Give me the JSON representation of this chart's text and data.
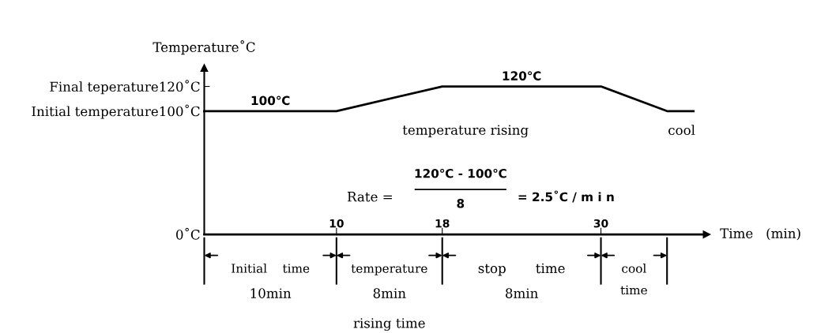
{
  "chart_data": {
    "type": "line",
    "ylabel": "Temperature˚C",
    "xlabel": "Time   (min)",
    "series": [
      {
        "color": "#000000",
        "x": [
          0,
          10,
          18,
          30,
          35,
          37
        ],
        "values": [
          100,
          100,
          120,
          120,
          100,
          100
        ]
      }
    ],
    "xlim": [
      0,
      38
    ],
    "ylim": [
      0,
      135
    ],
    "xticks": [
      10,
      18,
      30
    ],
    "yticks": [
      {
        "value": 0,
        "label": "0˚C"
      },
      {
        "value": 100,
        "label": "100˚C"
      },
      {
        "value": 120,
        "label": "120˚C"
      }
    ],
    "annotations": [
      {
        "text": "100℃",
        "x": 5,
        "y": 100
      },
      {
        "text": "120℃",
        "x": 24,
        "y": 120
      },
      "temperature rising",
      "cool",
      "Rate =",
      "120℃ - 100℃",
      "8",
      "= 2.5˚C / m i n",
      "Initial temperature",
      "Final teperature",
      "Initial    time",
      "10min",
      "temperature",
      "8min",
      "rising time",
      "stop       time",
      "8min",
      "cool",
      "time"
    ],
    "grid": false,
    "legend": false,
    "marker": "none",
    "line_style": "solid"
  }
}
